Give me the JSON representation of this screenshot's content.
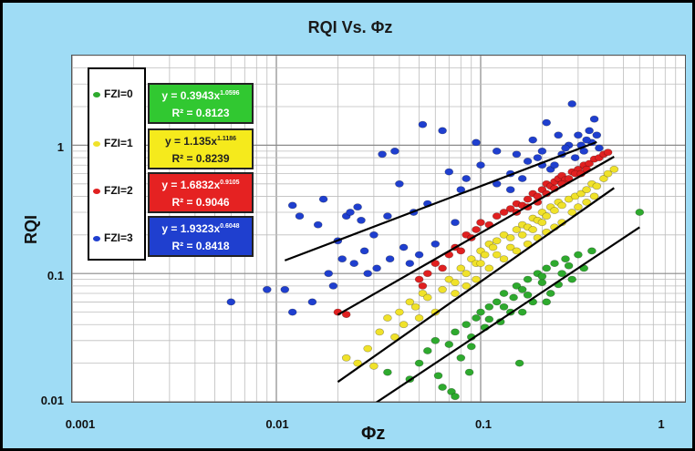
{
  "chart_data": {
    "type": "scatter",
    "title": "RQI Vs. Φz",
    "xlabel": "Φz",
    "ylabel": "RQI",
    "xscale": "log",
    "yscale": "log",
    "xlim": [
      0.001,
      1
    ],
    "ylim": [
      0.01,
      5
    ],
    "x_ticks": [
      "0.001",
      "0.01",
      "0.1",
      "1"
    ],
    "y_ticks": [
      "0.01",
      "0.1",
      "1"
    ],
    "grid": true,
    "legend_position": "top-left",
    "series": [
      {
        "name": "FZI=0",
        "color": "#2eaa2e",
        "equation": "y = 0.3943x",
        "exponent": "1.0596",
        "r2": "R² = 0.8123",
        "trend": {
          "a": 0.3943,
          "b": 1.0596,
          "x_from": 0.028,
          "x_to": 0.6
        },
        "points": [
          [
            0.035,
            0.017
          ],
          [
            0.045,
            0.015
          ],
          [
            0.05,
            0.02
          ],
          [
            0.055,
            0.025
          ],
          [
            0.06,
            0.03
          ],
          [
            0.062,
            0.016
          ],
          [
            0.065,
            0.013
          ],
          [
            0.07,
            0.028
          ],
          [
            0.072,
            0.012
          ],
          [
            0.075,
            0.035
          ],
          [
            0.08,
            0.022
          ],
          [
            0.085,
            0.04
          ],
          [
            0.088,
            0.017
          ],
          [
            0.09,
            0.032
          ],
          [
            0.095,
            0.045
          ],
          [
            0.1,
            0.05
          ],
          [
            0.105,
            0.038
          ],
          [
            0.11,
            0.055
          ],
          [
            0.12,
            0.06
          ],
          [
            0.125,
            0.042
          ],
          [
            0.13,
            0.07
          ],
          [
            0.14,
            0.05
          ],
          [
            0.145,
            0.065
          ],
          [
            0.15,
            0.08
          ],
          [
            0.155,
            0.02
          ],
          [
            0.16,
            0.075
          ],
          [
            0.17,
            0.09
          ],
          [
            0.18,
            0.06
          ],
          [
            0.19,
            0.1
          ],
          [
            0.2,
            0.085
          ],
          [
            0.21,
            0.11
          ],
          [
            0.22,
            0.07
          ],
          [
            0.23,
            0.12
          ],
          [
            0.25,
            0.1
          ],
          [
            0.26,
            0.13
          ],
          [
            0.28,
            0.09
          ],
          [
            0.3,
            0.14
          ],
          [
            0.32,
            0.11
          ],
          [
            0.35,
            0.15
          ],
          [
            0.6,
            0.3
          ],
          [
            0.075,
            0.011
          ],
          [
            0.09,
            0.027
          ],
          [
            0.11,
            0.044
          ],
          [
            0.13,
            0.055
          ],
          [
            0.17,
            0.068
          ],
          [
            0.2,
            0.095
          ],
          [
            0.24,
            0.082
          ],
          [
            0.27,
            0.115
          ],
          [
            0.21,
            0.06
          ],
          [
            0.16,
            0.05
          ]
        ]
      },
      {
        "name": "FZI=1",
        "color": "#f0e22a",
        "equation": "y = 1.135x",
        "exponent": "1.1186",
        "r2": "R² = 0.8239",
        "trend": {
          "a": 1.135,
          "b": 1.1186,
          "x_from": 0.02,
          "x_to": 0.45
        },
        "points": [
          [
            0.022,
            0.022
          ],
          [
            0.025,
            0.02
          ],
          [
            0.028,
            0.026
          ],
          [
            0.03,
            0.019
          ],
          [
            0.032,
            0.035
          ],
          [
            0.035,
            0.045
          ],
          [
            0.038,
            0.032
          ],
          [
            0.04,
            0.05
          ],
          [
            0.042,
            0.04
          ],
          [
            0.045,
            0.06
          ],
          [
            0.048,
            0.055
          ],
          [
            0.05,
            0.045
          ],
          [
            0.052,
            0.07
          ],
          [
            0.055,
            0.065
          ],
          [
            0.06,
            0.05
          ],
          [
            0.065,
            0.075
          ],
          [
            0.07,
            0.09
          ],
          [
            0.075,
            0.085
          ],
          [
            0.08,
            0.11
          ],
          [
            0.085,
            0.1
          ],
          [
            0.09,
            0.13
          ],
          [
            0.095,
            0.12
          ],
          [
            0.1,
            0.15
          ],
          [
            0.105,
            0.14
          ],
          [
            0.11,
            0.17
          ],
          [
            0.115,
            0.16
          ],
          [
            0.12,
            0.18
          ],
          [
            0.13,
            0.2
          ],
          [
            0.14,
            0.19
          ],
          [
            0.15,
            0.22
          ],
          [
            0.16,
            0.24
          ],
          [
            0.17,
            0.23
          ],
          [
            0.18,
            0.27
          ],
          [
            0.19,
            0.26
          ],
          [
            0.2,
            0.3
          ],
          [
            0.21,
            0.28
          ],
          [
            0.22,
            0.33
          ],
          [
            0.23,
            0.31
          ],
          [
            0.24,
            0.36
          ],
          [
            0.25,
            0.34
          ],
          [
            0.27,
            0.38
          ],
          [
            0.29,
            0.4
          ],
          [
            0.31,
            0.42
          ],
          [
            0.33,
            0.45
          ],
          [
            0.35,
            0.5
          ],
          [
            0.37,
            0.48
          ],
          [
            0.4,
            0.55
          ],
          [
            0.42,
            0.6
          ],
          [
            0.45,
            0.65
          ],
          [
            0.1,
            0.12
          ],
          [
            0.12,
            0.14
          ],
          [
            0.14,
            0.16
          ],
          [
            0.16,
            0.2
          ],
          [
            0.18,
            0.22
          ],
          [
            0.2,
            0.25
          ],
          [
            0.075,
            0.07
          ],
          [
            0.085,
            0.08
          ],
          [
            0.095,
            0.09
          ],
          [
            0.11,
            0.11
          ],
          [
            0.13,
            0.13
          ],
          [
            0.15,
            0.15
          ],
          [
            0.17,
            0.17
          ],
          [
            0.19,
            0.19
          ],
          [
            0.21,
            0.21
          ],
          [
            0.23,
            0.23
          ],
          [
            0.25,
            0.25
          ],
          [
            0.28,
            0.3
          ],
          [
            0.3,
            0.33
          ],
          [
            0.33,
            0.36
          ],
          [
            0.36,
            0.4
          ]
        ]
      },
      {
        "name": "FZI=2",
        "color": "#e02020",
        "equation": "y = 1.6832x",
        "exponent": "0.9105",
        "r2": "R² = 0.9046",
        "trend": {
          "a": 1.6832,
          "b": 0.9105,
          "x_from": 0.02,
          "x_to": 0.45
        },
        "points": [
          [
            0.02,
            0.05
          ],
          [
            0.022,
            0.048
          ],
          [
            0.05,
            0.09
          ],
          [
            0.052,
            0.08
          ],
          [
            0.055,
            0.1
          ],
          [
            0.06,
            0.12
          ],
          [
            0.065,
            0.11
          ],
          [
            0.07,
            0.14
          ],
          [
            0.075,
            0.16
          ],
          [
            0.08,
            0.15
          ],
          [
            0.085,
            0.2
          ],
          [
            0.09,
            0.19
          ],
          [
            0.095,
            0.22
          ],
          [
            0.1,
            0.25
          ],
          [
            0.11,
            0.24
          ],
          [
            0.12,
            0.28
          ],
          [
            0.13,
            0.3
          ],
          [
            0.14,
            0.32
          ],
          [
            0.15,
            0.35
          ],
          [
            0.16,
            0.34
          ],
          [
            0.17,
            0.38
          ],
          [
            0.18,
            0.42
          ],
          [
            0.19,
            0.4
          ],
          [
            0.2,
            0.45
          ],
          [
            0.21,
            0.5
          ],
          [
            0.22,
            0.48
          ],
          [
            0.23,
            0.52
          ],
          [
            0.24,
            0.55
          ],
          [
            0.25,
            0.58
          ],
          [
            0.26,
            0.54
          ],
          [
            0.28,
            0.62
          ],
          [
            0.3,
            0.65
          ],
          [
            0.32,
            0.7
          ],
          [
            0.34,
            0.72
          ],
          [
            0.36,
            0.78
          ],
          [
            0.38,
            0.8
          ],
          [
            0.4,
            0.85
          ],
          [
            0.42,
            0.88
          ],
          [
            0.15,
            0.3
          ],
          [
            0.17,
            0.33
          ],
          [
            0.19,
            0.36
          ],
          [
            0.21,
            0.42
          ],
          [
            0.23,
            0.46
          ],
          [
            0.25,
            0.5
          ],
          [
            0.27,
            0.55
          ],
          [
            0.29,
            0.6
          ],
          [
            0.31,
            0.6
          ],
          [
            0.33,
            0.65
          ]
        ]
      },
      {
        "name": "FZI=3",
        "color": "#1f3fcf",
        "equation": "y = 1.9323x",
        "exponent": "0.6048",
        "r2": "R² = 0.8418",
        "trend": {
          "a": 1.9323,
          "b": 0.6048,
          "x_from": 0.011,
          "x_to": 0.37
        },
        "points": [
          [
            0.006,
            0.06
          ],
          [
            0.009,
            0.075
          ],
          [
            0.011,
            0.075
          ],
          [
            0.012,
            0.05
          ],
          [
            0.012,
            0.34
          ],
          [
            0.013,
            0.28
          ],
          [
            0.015,
            0.06
          ],
          [
            0.016,
            0.24
          ],
          [
            0.017,
            0.38
          ],
          [
            0.018,
            0.1
          ],
          [
            0.019,
            0.08
          ],
          [
            0.02,
            0.18
          ],
          [
            0.021,
            0.13
          ],
          [
            0.022,
            0.28
          ],
          [
            0.023,
            0.3
          ],
          [
            0.024,
            0.12
          ],
          [
            0.025,
            0.33
          ],
          [
            0.026,
            0.26
          ],
          [
            0.027,
            0.15
          ],
          [
            0.028,
            0.1
          ],
          [
            0.03,
            0.2
          ],
          [
            0.031,
            0.11
          ],
          [
            0.033,
            0.85
          ],
          [
            0.035,
            0.28
          ],
          [
            0.036,
            0.13
          ],
          [
            0.038,
            0.9
          ],
          [
            0.04,
            0.5
          ],
          [
            0.042,
            0.16
          ],
          [
            0.045,
            0.12
          ],
          [
            0.047,
            0.3
          ],
          [
            0.05,
            0.14
          ],
          [
            0.052,
            1.45
          ],
          [
            0.055,
            0.35
          ],
          [
            0.06,
            0.17
          ],
          [
            0.065,
            1.3
          ],
          [
            0.07,
            0.62
          ],
          [
            0.075,
            0.25
          ],
          [
            0.08,
            0.45
          ],
          [
            0.085,
            0.55
          ],
          [
            0.095,
            1.05
          ],
          [
            0.1,
            0.7
          ],
          [
            0.12,
            0.9
          ],
          [
            0.14,
            0.6
          ],
          [
            0.15,
            0.85
          ],
          [
            0.16,
            0.55
          ],
          [
            0.18,
            1.1
          ],
          [
            0.2,
            0.9
          ],
          [
            0.21,
            1.5
          ],
          [
            0.22,
            0.65
          ],
          [
            0.24,
            1.2
          ],
          [
            0.25,
            0.85
          ],
          [
            0.27,
            1.0
          ],
          [
            0.28,
            2.1
          ],
          [
            0.3,
            1.2
          ],
          [
            0.32,
            0.9
          ],
          [
            0.34,
            1.3
          ],
          [
            0.35,
            1.05
          ],
          [
            0.36,
            1.6
          ],
          [
            0.37,
            1.2
          ],
          [
            0.38,
            0.95
          ],
          [
            0.12,
            0.5
          ],
          [
            0.14,
            0.45
          ],
          [
            0.17,
            0.75
          ],
          [
            0.19,
            0.8
          ],
          [
            0.23,
            0.7
          ],
          [
            0.26,
            0.95
          ],
          [
            0.29,
            0.8
          ],
          [
            0.31,
            1.0
          ],
          [
            0.33,
            1.1
          ],
          [
            0.2,
            0.7
          ]
        ]
      }
    ]
  }
}
